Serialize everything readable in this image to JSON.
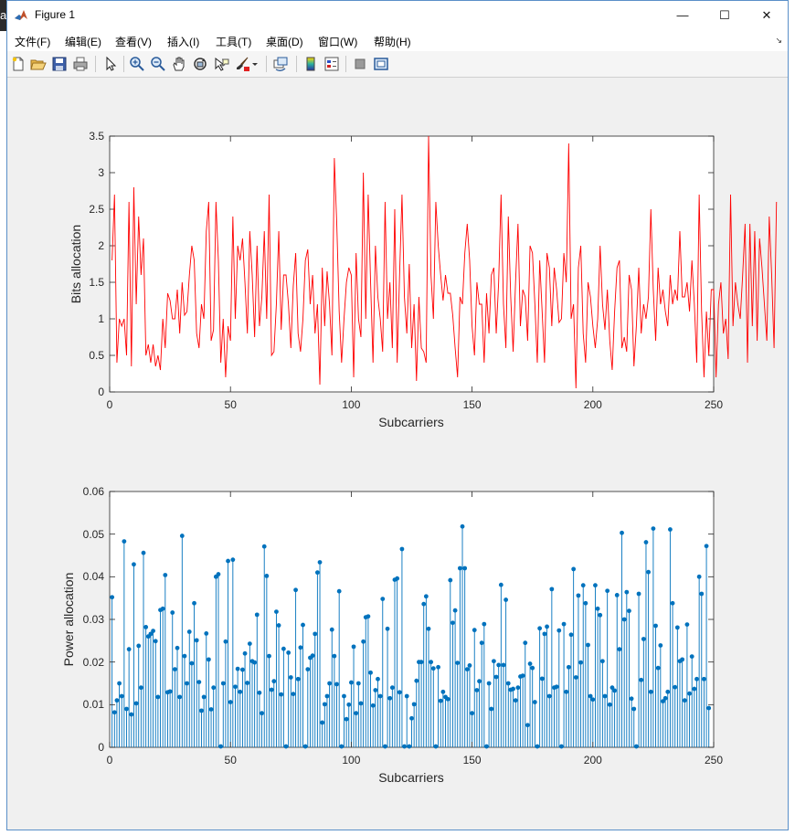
{
  "window": {
    "title": "Figure 1",
    "left_strip_char": "a",
    "controls": {
      "minimize": "—",
      "maximize": "☐",
      "close": "✕"
    }
  },
  "menu": {
    "items": [
      "文件(F)",
      "编辑(E)",
      "查看(V)",
      "插入(I)",
      "工具(T)",
      "桌面(D)",
      "窗口(W)",
      "帮助(H)"
    ],
    "extra": "↘"
  },
  "toolbar": {
    "icons": [
      "new-figure-icon",
      "open-file-icon",
      "save-icon",
      "print-icon",
      "select-arrow-icon",
      "zoom-in-icon",
      "zoom-out-icon",
      "pan-hand-icon",
      "rotate-3d-icon",
      "data-cursor-icon",
      "brush-icon",
      "brush-dropdown-icon",
      "link-plot-icon",
      "colorbar-icon",
      "legend-icon",
      "hide-plot-tools-icon",
      "show-plot-tools-icon"
    ]
  },
  "colors": {
    "bits_line": "#ff0000",
    "power_stem": "#0072bd"
  },
  "chart_data": [
    {
      "type": "line",
      "xlabel": "Subcarriers",
      "ylabel": "Bits allocation",
      "xlim": [
        0,
        250
      ],
      "ylim": [
        0,
        3.5
      ],
      "xticks": [
        "0",
        "50",
        "100",
        "150",
        "200",
        "250"
      ],
      "yticks": [
        "0",
        "0.5",
        "1",
        "1.5",
        "2",
        "2.5",
        "3",
        "3.5"
      ],
      "grid": false,
      "series": [
        {
          "values": [
            1.8,
            2.7,
            0.4,
            1.0,
            0.9,
            1.0,
            0.5,
            2.6,
            0.35,
            2.8,
            1.2,
            2.4,
            1.6,
            2.1,
            0.5,
            0.65,
            0.4,
            0.65,
            0.35,
            0.5,
            0.3,
            1.0,
            0.6,
            1.35,
            1.25,
            1.0,
            1.0,
            1.4,
            0.8,
            1.5,
            1.05,
            1.1,
            1.6,
            2.0,
            1.8,
            0.8,
            0.6,
            1.2,
            1.0,
            2.2,
            2.6,
            0.7,
            0.85,
            2.6,
            1.8,
            0.4,
            1.0,
            0.2,
            0.9,
            0.7,
            2.4,
            1.0,
            2.0,
            1.8,
            2.1,
            1.5,
            0.8,
            2.2,
            1.6,
            0.75,
            2.0,
            0.9,
            1.3,
            2.2,
            1.0,
            2.7,
            0.5,
            0.55,
            1.2,
            2.2,
            0.85,
            1.6,
            1.6,
            1.2,
            0.6,
            1.45,
            1.9,
            0.8,
            0.55,
            1.0,
            1.8,
            1.95,
            1.2,
            1.6,
            0.8,
            1.2,
            0.1,
            1.7,
            0.9,
            1.65,
            1.2,
            0.5,
            3.2,
            2.3,
            1.1,
            0.4,
            1.0,
            1.5,
            1.7,
            1.6,
            0.2,
            1.9,
            1.0,
            0.75,
            3.0,
            1.0,
            2.7,
            1.5,
            0.4,
            2.0,
            1.3,
            1.0,
            0.55,
            2.6,
            1.0,
            1.5,
            0.6,
            2.5,
            0.4,
            1.6,
            2.7,
            1.3,
            0.8,
            1.75,
            0.6,
            1.2,
            0.15,
            1.3,
            0.6,
            0.55,
            0.4,
            3.5,
            1.6,
            1.0,
            2.6,
            2.0,
            1.6,
            1.25,
            1.6,
            1.35,
            1.35,
            1.05,
            0.6,
            0.2,
            1.3,
            1.2,
            1.9,
            2.3,
            1.8,
            0.9,
            0.5,
            1.5,
            1.2,
            1.2,
            0.4,
            1.35,
            0.8,
            1.6,
            1.7,
            0.8,
            1.5,
            2.7,
            1.2,
            0.6,
            2.4,
            1.3,
            0.55,
            1.5,
            2.3,
            0.9,
            1.4,
            1.3,
            0.7,
            2.0,
            1.9,
            1.2,
            0.4,
            1.8,
            1.1,
            0.4,
            1.9,
            1.7,
            0.9,
            1.7,
            1.4,
            0.95,
            1.0,
            1.9,
            1.5,
            3.4,
            1.0,
            1.2,
            0.05,
            1.7,
            2.0,
            0.8,
            0.4,
            1.5,
            1.3,
            0.9,
            0.6,
            1.0,
            2.0,
            1.2,
            0.85,
            1.4,
            0.7,
            0.3,
            1.1,
            1.7,
            1.8,
            0.6,
            0.75,
            0.55,
            1.6,
            1.4,
            0.35,
            0.9,
            1.7,
            0.8,
            1.2,
            1.0,
            1.3,
            2.5,
            1.4,
            0.7,
            1.7,
            1.2,
            1.4,
            1.1,
            0.9,
            1.6,
            1.2,
            1.4,
            1.25,
            2.2,
            1.3,
            1.3,
            1.5,
            1.1,
            1.8,
            1.2,
            0.4,
            2.7,
            1.1,
            0.2,
            1.1,
            0.5,
            1.4,
            1.4,
            0.2,
            1.2,
            1.5,
            0.8,
            1.0,
            0.45,
            2.7,
            0.9,
            1.5,
            1.2,
            1.0,
            1.6,
            2.3,
            0.4,
            2.3,
            0.9,
            2.2,
            0.7,
            2.1,
            1.7,
            1.2,
            0.7,
            2.4,
            1.6,
            0.6,
            2.6
          ]
        }
      ]
    },
    {
      "type": "stem",
      "xlabel": "Subcarriers",
      "ylabel": "Power allocation",
      "xlim": [
        0,
        250
      ],
      "ylim": [
        0,
        0.06
      ],
      "xticks": [
        "0",
        "50",
        "100",
        "150",
        "200",
        "250"
      ],
      "yticks": [
        "0",
        "0.01",
        "0.02",
        "0.03",
        "0.04",
        "0.05",
        "0.06"
      ],
      "grid": false,
      "series": [
        {
          "values": [
            0.0352,
            0.0082,
            0.011,
            0.015,
            0.012,
            0.0483,
            0.009,
            0.023,
            0.0077,
            0.0429,
            0.0103,
            0.0238,
            0.014,
            0.0456,
            0.0282,
            0.026,
            0.0266,
            0.0273,
            0.0249,
            0.0118,
            0.0322,
            0.0325,
            0.0404,
            0.0129,
            0.0131,
            0.0316,
            0.0183,
            0.0233,
            0.0118,
            0.0496,
            0.0214,
            0.015,
            0.0271,
            0.0197,
            0.0338,
            0.0251,
            0.0153,
            0.0086,
            0.0118,
            0.0267,
            0.0206,
            0.0089,
            0.014,
            0.04,
            0.0406,
            0.0002,
            0.015,
            0.0248,
            0.0437,
            0.0106,
            0.044,
            0.0142,
            0.0184,
            0.013,
            0.0182,
            0.022,
            0.0151,
            0.0243,
            0.0202,
            0.0199,
            0.0311,
            0.0128,
            0.008,
            0.0471,
            0.0402,
            0.0214,
            0.0135,
            0.0155,
            0.0318,
            0.0286,
            0.0124,
            0.0231,
            0.0002,
            0.0222,
            0.0164,
            0.0125,
            0.0369,
            0.016,
            0.0234,
            0.0287,
            0.0002,
            0.0183,
            0.021,
            0.0215,
            0.0266,
            0.041,
            0.0434,
            0.0058,
            0.0101,
            0.012,
            0.015,
            0.0276,
            0.0214,
            0.0148,
            0.0366,
            0.0002,
            0.012,
            0.0066,
            0.01,
            0.0152,
            0.0236,
            0.008,
            0.015,
            0.0103,
            0.0248,
            0.0305,
            0.0307,
            0.0175,
            0.0098,
            0.0134,
            0.016,
            0.012,
            0.0348,
            0.0002,
            0.0278,
            0.0115,
            0.014,
            0.0393,
            0.0396,
            0.0129,
            0.0465,
            0.0002,
            0.012,
            0.0002,
            0.0068,
            0.0101,
            0.0156,
            0.02,
            0.02,
            0.0336,
            0.0354,
            0.0278,
            0.02,
            0.0185,
            0.0002,
            0.0188,
            0.0109,
            0.013,
            0.0118,
            0.0113,
            0.0392,
            0.0292,
            0.0321,
            0.0198,
            0.042,
            0.0518,
            0.042,
            0.0183,
            0.0192,
            0.008,
            0.0275,
            0.0134,
            0.0155,
            0.0245,
            0.0289,
            0.0002,
            0.015,
            0.009,
            0.0202,
            0.0165,
            0.0193,
            0.0381,
            0.0193,
            0.0346,
            0.015,
            0.0135,
            0.0137,
            0.011,
            0.014,
            0.0166,
            0.0168,
            0.0245,
            0.0052,
            0.0196,
            0.0186,
            0.0106,
            0.0002,
            0.0279,
            0.0161,
            0.0266,
            0.0283,
            0.012,
            0.0371,
            0.014,
            0.0142,
            0.0274,
            0.0002,
            0.0289,
            0.013,
            0.0188,
            0.0264,
            0.0418,
            0.0164,
            0.0356,
            0.0199,
            0.038,
            0.0338,
            0.024,
            0.012,
            0.0112,
            0.038,
            0.0325,
            0.031,
            0.0202,
            0.012,
            0.0367,
            0.01,
            0.014,
            0.0133,
            0.0357,
            0.023,
            0.0503,
            0.03,
            0.0364,
            0.032,
            0.0114,
            0.009,
            0.0002,
            0.036,
            0.0158,
            0.0254,
            0.0481,
            0.0411,
            0.013,
            0.0513,
            0.0285,
            0.0186,
            0.0239,
            0.0108,
            0.0115,
            0.013,
            0.0511,
            0.0338,
            0.0141,
            0.0281,
            0.0202,
            0.0206,
            0.011,
            0.0288,
            0.0126,
            0.0213,
            0.0137,
            0.016,
            0.04,
            0.036,
            0.016,
            0.0472,
            0.0092
          ]
        }
      ]
    }
  ]
}
